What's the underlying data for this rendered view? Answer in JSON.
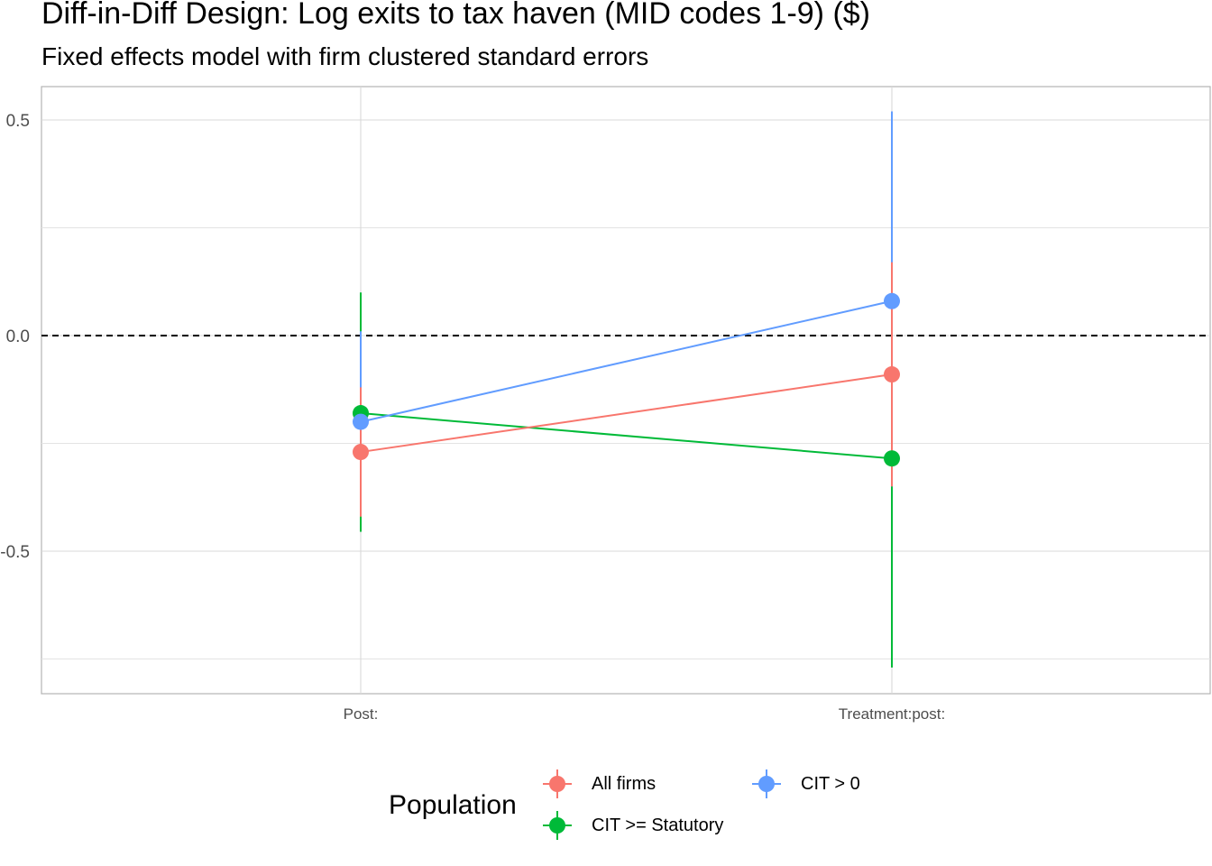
{
  "chart_data": {
    "type": "scatter",
    "title": "Diff-in-Diff Design: Log exits to tax haven (MID codes 1-9)  ($)",
    "subtitle": "Fixed effects model with firm clustered standard errors",
    "xlabel": "",
    "ylabel": "",
    "categories": [
      "Post:",
      "Treatment:post:"
    ],
    "y_ticks": [
      "0.5",
      "0.0",
      "-0.5"
    ],
    "y_tick_values": [
      0.5,
      0.0,
      -0.5
    ],
    "ylim": [
      -0.83,
      0.58
    ],
    "reference_line": 0,
    "grid": true,
    "legend_title": "Population",
    "legend_position": "bottom",
    "series": [
      {
        "name": "All firms",
        "color": "#F8766D",
        "values": [
          -0.27,
          -0.09
        ],
        "ci_low": [
          -0.42,
          -0.35
        ],
        "ci_high": [
          -0.12,
          0.17
        ]
      },
      {
        "name": "CIT > 0",
        "color": "#619CFF",
        "values": [
          -0.2,
          0.08
        ],
        "ci_low": [
          -0.41,
          -0.35
        ],
        "ci_high": [
          0.01,
          0.52
        ]
      },
      {
        "name": "CIT >= Statutory",
        "color": "#00BA38",
        "values": [
          -0.18,
          -0.285
        ],
        "ci_low": [
          -0.455,
          -0.77
        ],
        "ci_high": [
          0.1,
          0.2
        ]
      }
    ]
  }
}
